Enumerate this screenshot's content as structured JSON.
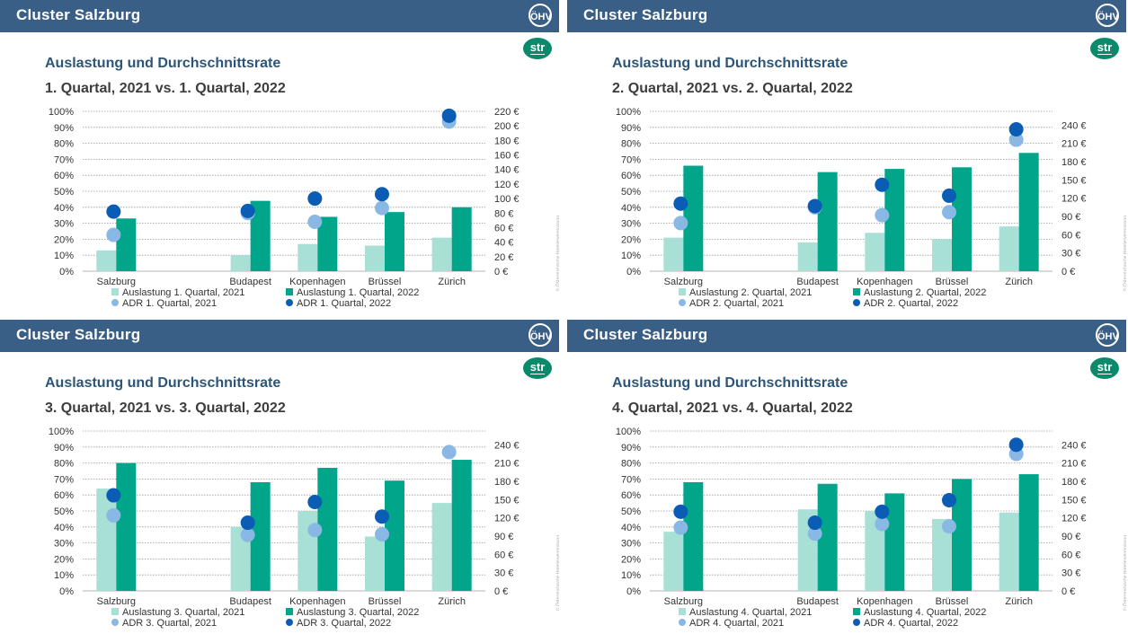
{
  "colors": {
    "occ_2021": "#a8e0d6",
    "occ_2022": "#00a58a",
    "adr_2021": "#89b8e4",
    "adr_2022": "#0b5cb5",
    "header": "#3a5f87"
  },
  "panels": [
    {
      "cluster": "Cluster Salzburg",
      "logo": "ÖHV",
      "str": "str",
      "heading": "Auslastung und Durchschnittsrate",
      "subheading": "1. Quartal, 2021 vs. 1. Quartal, 2022",
      "watermark": "© Österreichische Hoteliervereinigung",
      "legend": {
        "occ_2021": "Auslastung 1. Quartal, 2021",
        "occ_2022": "Auslastung 1. Quartal, 2022",
        "adr_2021": "ADR 1. Quartal, 2021",
        "adr_2022": "ADR 1. Quartal, 2022"
      },
      "chart_data": {
        "type": "bar",
        "categories": [
          "Salzburg",
          "",
          "Budapest",
          "Kopenhagen",
          "Brüssel",
          "Zürich"
        ],
        "series": [
          {
            "name": "Auslastung 1. Quartal, 2021",
            "values": [
              13,
              null,
              10,
              17,
              16,
              21
            ]
          },
          {
            "name": "Auslastung 1. Quartal, 2022",
            "values": [
              33,
              null,
              44,
              34,
              37,
              40
            ]
          },
          {
            "name": "ADR 1. Quartal, 2021",
            "values": [
              50,
              null,
              80,
              68,
              87,
              206
            ]
          },
          {
            "name": "ADR 1. Quartal, 2022",
            "values": [
              82,
              null,
              83,
              100,
              106,
              214
            ]
          }
        ],
        "ylim": [
          0,
          100
        ],
        "y2lim": [
          0,
          220
        ],
        "yticks": [
          "0%",
          "10%",
          "20%",
          "30%",
          "40%",
          "50%",
          "60%",
          "70%",
          "80%",
          "90%",
          "100%"
        ],
        "y2ticks": [
          "0 €",
          "20 €",
          "40 €",
          "60 €",
          "80 €",
          "100 €",
          "120 €",
          "140 €",
          "160 €",
          "180 €",
          "200 €",
          "220 €"
        ]
      }
    },
    {
      "cluster": "Cluster Salzburg",
      "logo": "ÖHV",
      "str": "str",
      "heading": "Auslastung und Durchschnittsrate",
      "subheading": "2. Quartal, 2021 vs. 2. Quartal, 2022",
      "watermark": "© Österreichische Hoteliervereinigung",
      "legend": {
        "occ_2021": "Auslastung 2. Quartal, 2021",
        "occ_2022": "Auslastung 2. Quartal, 2022",
        "adr_2021": "ADR 2. Quartal, 2021",
        "adr_2022": "ADR 2. Quartal, 2022"
      },
      "chart_data": {
        "type": "bar",
        "categories": [
          "Salzburg",
          "",
          "Budapest",
          "Kopenhagen",
          "Brüssel",
          "Zürich"
        ],
        "series": [
          {
            "name": "Auslastung 2. Quartal, 2021",
            "values": [
              21,
              null,
              18,
              24,
              20,
              28
            ]
          },
          {
            "name": "Auslastung 2. Quartal, 2022",
            "values": [
              66,
              null,
              62,
              64,
              65,
              74
            ]
          },
          {
            "name": "ADR 2. Quartal, 2021",
            "values": [
              79,
              null,
              105,
              92,
              97,
              216
            ]
          },
          {
            "name": "ADR 2. Quartal, 2022",
            "values": [
              111,
              null,
              107,
              142,
              124,
              233
            ]
          }
        ],
        "ylim": [
          0,
          100
        ],
        "y2lim": [
          0,
          262.5
        ],
        "yticks": [
          "0%",
          "10%",
          "20%",
          "30%",
          "40%",
          "50%",
          "60%",
          "70%",
          "80%",
          "90%",
          "100%"
        ],
        "y2ticks": [
          "0 €",
          "30 €",
          "60 €",
          "90 €",
          "120 €",
          "150 €",
          "180 €",
          "210 €",
          "240 €"
        ]
      }
    },
    {
      "cluster": "Cluster Salzburg",
      "logo": "ÖHV",
      "str": "str",
      "heading": "Auslastung und Durchschnittsrate",
      "subheading": "3. Quartal, 2021 vs. 3. Quartal, 2022",
      "watermark": "© Österreichische Hoteliervereinigung",
      "legend": {
        "occ_2021": "Auslastung 3. Quartal, 2021",
        "occ_2022": "Auslastung 3. Quartal, 2022",
        "adr_2021": "ADR 3. Quartal, 2021",
        "adr_2022": "ADR 3. Quartal, 2022"
      },
      "chart_data": {
        "type": "bar",
        "categories": [
          "Salzburg",
          "",
          "Budapest",
          "Kopenhagen",
          "Brüssel",
          "Zürich"
        ],
        "series": [
          {
            "name": "Auslastung 3. Quartal, 2021",
            "values": [
              64,
              null,
              40,
              50,
              34,
              55
            ]
          },
          {
            "name": "Auslastung 3. Quartal, 2022",
            "values": [
              80,
              null,
              68,
              77,
              69,
              82
            ]
          },
          {
            "name": "ADR 3. Quartal, 2021",
            "values": [
              124,
              null,
              92,
              100,
              93,
              228
            ]
          },
          {
            "name": "ADR 3. Quartal, 2022",
            "values": [
              157,
              null,
              112,
              146,
              122,
              null
            ]
          }
        ],
        "ylim": [
          0,
          100
        ],
        "y2lim": [
          0,
          262.5
        ],
        "yticks": [
          "0%",
          "10%",
          "20%",
          "30%",
          "40%",
          "50%",
          "60%",
          "70%",
          "80%",
          "90%",
          "100%"
        ],
        "y2ticks": [
          "0 €",
          "30 €",
          "60 €",
          "90 €",
          "120 €",
          "150 €",
          "180 €",
          "210 €",
          "240 €"
        ]
      }
    },
    {
      "cluster": "Cluster Salzburg",
      "logo": "ÖHV",
      "str": "str",
      "heading": "Auslastung und Durchschnittsrate",
      "subheading": "4. Quartal, 2021 vs. 4. Quartal, 2022",
      "watermark": "© Österreichische Hoteliervereinigung",
      "legend": {
        "occ_2021": "Auslastung 4. Quartal, 2021",
        "occ_2022": "Auslastung 4. Quartal, 2022",
        "adr_2021": "ADR 4. Quartal, 2021",
        "adr_2022": "ADR 4. Quartal, 2022"
      },
      "chart_data": {
        "type": "bar",
        "categories": [
          "Salzburg",
          "",
          "Budapest",
          "Kopenhagen",
          "Brüssel",
          "Zürich"
        ],
        "series": [
          {
            "name": "Auslastung 4. Quartal, 2021",
            "values": [
              37,
              null,
              51,
              50,
              45,
              49
            ]
          },
          {
            "name": "Auslastung 4. Quartal, 2022",
            "values": [
              68,
              null,
              67,
              61,
              70,
              73
            ]
          },
          {
            "name": "ADR 4. Quartal, 2021",
            "values": [
              104,
              null,
              94,
              110,
              106,
              225
            ]
          },
          {
            "name": "ADR 4. Quartal, 2022",
            "values": [
              130,
              null,
              112,
              130,
              149,
              240
            ]
          }
        ],
        "ylim": [
          0,
          100
        ],
        "y2lim": [
          0,
          262.5
        ],
        "yticks": [
          "0%",
          "10%",
          "20%",
          "30%",
          "40%",
          "50%",
          "60%",
          "70%",
          "80%",
          "90%",
          "100%"
        ],
        "y2ticks": [
          "0 €",
          "30 €",
          "60 €",
          "90 €",
          "120 €",
          "150 €",
          "180 €",
          "210 €",
          "240 €"
        ]
      }
    }
  ]
}
